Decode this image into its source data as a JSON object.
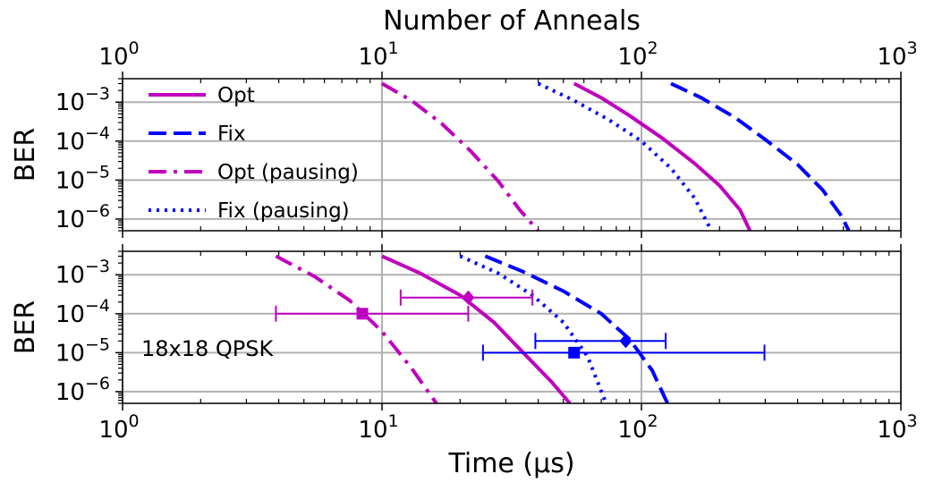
{
  "chart_data": [
    {
      "type": "line",
      "panel": "top",
      "top_xlabel": "Number of Anneals",
      "xlabel": "",
      "ylabel": "BER",
      "xscale": "log",
      "yscale": "log",
      "xlim": [
        1,
        1000
      ],
      "ylim": [
        5e-07,
        0.004
      ],
      "xticks": [
        {
          "base": "10",
          "exp": "0",
          "value": 1
        },
        {
          "base": "10",
          "exp": "1",
          "value": 10
        },
        {
          "base": "10",
          "exp": "2",
          "value": 100
        },
        {
          "base": "10",
          "exp": "3",
          "value": 1000
        }
      ],
      "yticks": [
        {
          "base": "10",
          "exp": "−3",
          "value": 0.001
        },
        {
          "base": "10",
          "exp": "−4",
          "value": 0.0001
        },
        {
          "base": "10",
          "exp": "−5",
          "value": 1e-05
        },
        {
          "base": "10",
          "exp": "−6",
          "value": 1e-06
        }
      ],
      "grid": true,
      "legend_position": "top-left",
      "series": [
        {
          "name": "Opt",
          "color": "#bf00bf",
          "dash": "solid",
          "x": [
            55,
            70,
            90,
            120,
            160,
            200,
            240,
            262
          ],
          "y": [
            0.003,
            0.0013,
            0.00045,
            0.00012,
            2.7e-05,
            7.2e-06,
            1.7e-06,
            5e-07
          ]
        },
        {
          "name": "Fix",
          "color": "#0000ff",
          "dash": "dashed",
          "x": [
            130,
            170,
            230,
            300,
            400,
            500,
            590,
            630
          ],
          "y": [
            0.003,
            0.0013,
            0.0004,
            0.00011,
            2.5e-05,
            5.5e-06,
            1.2e-06,
            5e-07
          ]
        },
        {
          "name": "Opt (pausing)",
          "color": "#bf00bf",
          "dash": "dashdot",
          "x": [
            10,
            13,
            17,
            22,
            28,
            34,
            40
          ],
          "y": [
            0.003,
            0.0011,
            0.00028,
            5.5e-05,
            9.5e-06,
            1.7e-06,
            5e-07
          ]
        },
        {
          "name": "Fix (pausing)",
          "color": "#0000ff",
          "dash": "dotted",
          "x": [
            40,
            55,
            75,
            100,
            130,
            160,
            186
          ],
          "y": [
            0.003,
            0.0011,
            0.00035,
            0.0001,
            2e-05,
            3.5e-06,
            5e-07
          ]
        }
      ]
    },
    {
      "type": "line",
      "panel": "bottom",
      "xlabel": "Time (μs)",
      "ylabel": "BER",
      "xscale": "log",
      "yscale": "log",
      "xlim": [
        1,
        1000
      ],
      "ylim": [
        5e-07,
        0.004
      ],
      "annotation": "18x18 QPSK",
      "grid": true,
      "series": [
        {
          "color": "#bf00bf",
          "dash": "solid",
          "x": [
            10,
            14,
            20,
            27,
            35,
            45,
            53
          ],
          "y": [
            0.003,
            0.0011,
            0.0003,
            6e-05,
            1e-05,
            1.8e-06,
            5e-07
          ]
        },
        {
          "color": "#0000ff",
          "dash": "dashed",
          "x": [
            25,
            35,
            50,
            70,
            90,
            110,
            126
          ],
          "y": [
            0.003,
            0.0012,
            0.00038,
            0.0001,
            2.2e-05,
            3.5e-06,
            5e-07
          ]
        },
        {
          "color": "#bf00bf",
          "dash": "dashdot",
          "x": [
            3.9,
            5.5,
            7.5,
            10,
            13,
            16.2
          ],
          "y": [
            0.003,
            0.0009,
            0.00022,
            3.5e-05,
            4e-06,
            5e-07
          ]
        },
        {
          "color": "#0000ff",
          "dash": "dotted",
          "x": [
            20,
            28,
            38,
            50,
            62,
            73
          ],
          "y": [
            0.003,
            0.0011,
            0.0003,
            6e-05,
            8e-06,
            5e-07
          ]
        }
      ],
      "points": [
        {
          "x": 8.4,
          "y": 0.0001,
          "xerr": [
            3.9,
            21.5
          ],
          "marker": "square",
          "color": "#bf00bf"
        },
        {
          "x": 21.5,
          "y": 0.00026,
          "xerr": [
            11.8,
            38
          ],
          "marker": "diamond",
          "color": "#bf00bf"
        },
        {
          "x": 55,
          "y": 1e-05,
          "xerr": [
            24.5,
            298
          ],
          "marker": "square",
          "color": "#0000ff"
        },
        {
          "x": 87,
          "y": 2e-05,
          "xerr": [
            39,
            124
          ],
          "marker": "diamond",
          "color": "#0000ff"
        }
      ]
    }
  ]
}
